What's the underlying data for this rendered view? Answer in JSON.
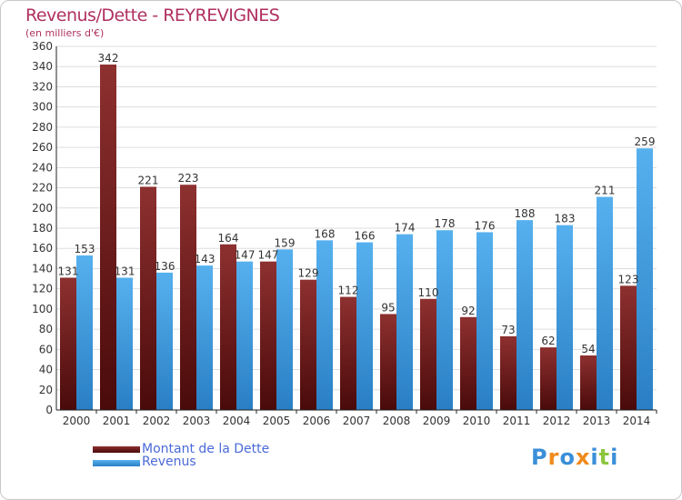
{
  "title": "Revenus/Dette - REYREVIGNES",
  "subtitle": "(en milliers d'€)",
  "brand": {
    "text": "Proxiti",
    "colors": [
      "#3a8fd8",
      "#f08a1c",
      "#3a8fd8",
      "#f08a1c",
      "#3a8fd8",
      "#8cc63f",
      "#3a8fd8"
    ]
  },
  "colors": {
    "dette": "#7a2222",
    "revenus": "#4aa3e6",
    "grid": "#dddddd",
    "axis": "#222222"
  },
  "chart_data": {
    "type": "bar",
    "categories": [
      "2000",
      "2001",
      "2002",
      "2003",
      "2004",
      "2005",
      "2006",
      "2007",
      "2008",
      "2009",
      "2010",
      "2011",
      "2012",
      "2013",
      "2014"
    ],
    "series": [
      {
        "name": "Montant de la Dette",
        "values": [
          131,
          342,
          221,
          223,
          164,
          147,
          129,
          112,
          95,
          110,
          92,
          73,
          62,
          54,
          123
        ]
      },
      {
        "name": "Revenus",
        "values": [
          153,
          131,
          136,
          143,
          147,
          159,
          168,
          166,
          174,
          178,
          176,
          188,
          183,
          211,
          259
        ]
      }
    ],
    "ylim": [
      0,
      360
    ],
    "yticks": [
      0,
      20,
      40,
      60,
      80,
      100,
      120,
      140,
      160,
      180,
      200,
      220,
      240,
      260,
      280,
      300,
      320,
      340,
      360
    ],
    "grid": true,
    "legend": "bottom-left"
  }
}
